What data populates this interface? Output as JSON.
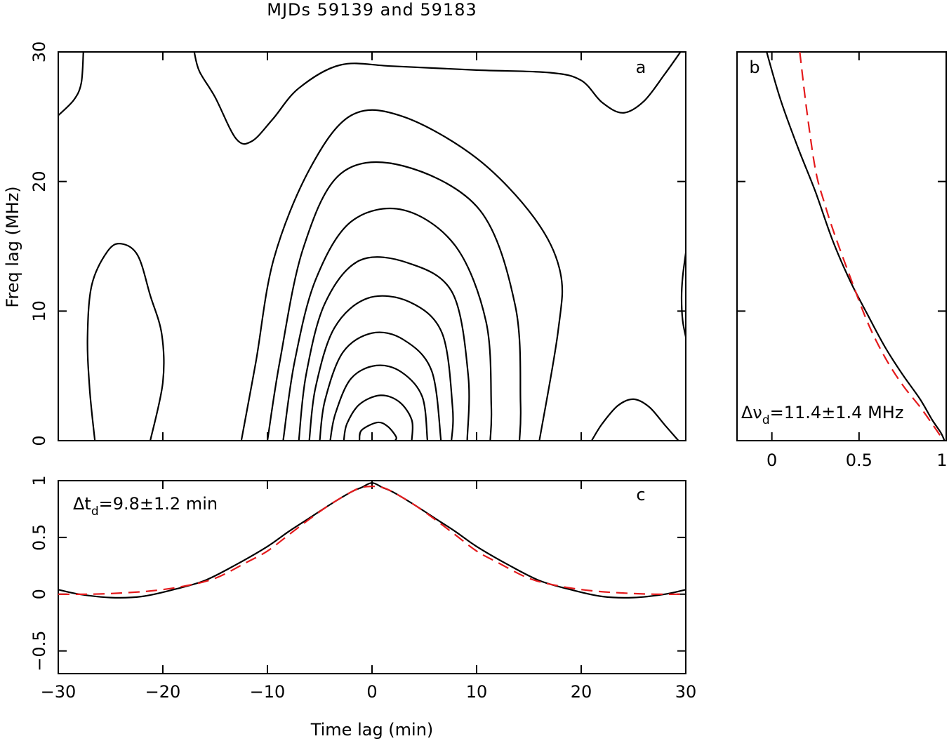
{
  "title": "MJDs 59139 and 59183",
  "chart_data": [
    {
      "id": "a",
      "type": "contour",
      "panel_label": "a",
      "xlabel": "",
      "ylabel": "Freq lag (MHz)",
      "xlim": [
        -30,
        30
      ],
      "ylim": [
        0,
        30
      ],
      "x_ticks": [
        -30,
        -20,
        -10,
        0,
        10,
        20,
        30
      ],
      "y_ticks": [
        0,
        10,
        20,
        30
      ],
      "y_tick_labels": [
        "0",
        "10",
        "20",
        "30"
      ],
      "contours": [
        [
          [
            -1.2,
            0
          ],
          [
            -1,
            0.8
          ],
          [
            0.5,
            1.4
          ],
          [
            1.5,
            1.1
          ],
          [
            2.3,
            0.3
          ],
          [
            2.2,
            0
          ]
        ],
        [
          [
            -2.7,
            0
          ],
          [
            -2.4,
            1.3
          ],
          [
            -1.2,
            2.8
          ],
          [
            0.8,
            3.5
          ],
          [
            2.6,
            3.0
          ],
          [
            3.8,
            1.6
          ],
          [
            3.8,
            0
          ]
        ],
        [
          [
            -4,
            0
          ],
          [
            -3.5,
            2.1
          ],
          [
            -2,
            4.8
          ],
          [
            0.4,
            5.8
          ],
          [
            2.8,
            5.3
          ],
          [
            4.8,
            3.4
          ],
          [
            5.3,
            0
          ]
        ],
        [
          [
            -5,
            0
          ],
          [
            -4.5,
            3.1
          ],
          [
            -2.8,
            6.8
          ],
          [
            0,
            8.3
          ],
          [
            3,
            7.8
          ],
          [
            5.7,
            5.4
          ],
          [
            6.6,
            0
          ]
        ],
        [
          [
            -6,
            0
          ],
          [
            -5.4,
            4.1
          ],
          [
            -3.6,
            8.7
          ],
          [
            -0.4,
            11.0
          ],
          [
            3.6,
            10.7
          ],
          [
            6.7,
            8.3
          ],
          [
            7.7,
            2.6
          ],
          [
            7.6,
            0
          ]
        ],
        [
          [
            -7,
            0
          ],
          [
            -6.3,
            5.1
          ],
          [
            -4.5,
            10.6
          ],
          [
            -1.2,
            13.9
          ],
          [
            3.5,
            13.7
          ],
          [
            7.7,
            11.4
          ],
          [
            9.2,
            5.0
          ],
          [
            9.1,
            0
          ]
        ],
        [
          [
            -8.5,
            0
          ],
          [
            -7.4,
            6.1
          ],
          [
            -5.4,
            12.4
          ],
          [
            -2,
            16.9
          ],
          [
            3,
            17.8
          ],
          [
            8,
            15.0
          ],
          [
            10.9,
            9.2
          ],
          [
            11.4,
            2.7
          ],
          [
            11.3,
            0
          ]
        ],
        [
          [
            -10,
            0
          ],
          [
            -8.8,
            6.2
          ],
          [
            -6.6,
            14.8
          ],
          [
            -3,
            20.6
          ],
          [
            3,
            21.2
          ],
          [
            10.3,
            17.8
          ],
          [
            13.7,
            10.4
          ],
          [
            14.2,
            2.9
          ],
          [
            14.1,
            0
          ]
        ],
        [
          [
            -12.5,
            0
          ],
          [
            -11.1,
            6.1
          ],
          [
            -9.4,
            14.0
          ],
          [
            -6,
            20.9
          ],
          [
            -2,
            25.1
          ],
          [
            3,
            25.0
          ],
          [
            10,
            21.8
          ],
          [
            15.5,
            17.2
          ],
          [
            18,
            13.0
          ],
          [
            17.8,
            8.5
          ],
          [
            16,
            0
          ]
        ],
        [
          [
            -30,
            25.1
          ],
          [
            -28.5,
            26.3
          ],
          [
            -27.8,
            27.6
          ],
          [
            -27.6,
            30
          ]
        ],
        [
          [
            -17,
            30
          ],
          [
            -16.5,
            28.5
          ],
          [
            -15,
            26.5
          ],
          [
            -13,
            23.3
          ],
          [
            -11.5,
            23.1
          ],
          [
            -9.5,
            24.8
          ],
          [
            -7,
            27.2
          ],
          [
            -3,
            29.0
          ],
          [
            2,
            28.9
          ],
          [
            10,
            28.6
          ],
          [
            17,
            28.4
          ],
          [
            20,
            27.8
          ],
          [
            22,
            26.1
          ],
          [
            24,
            25.3
          ],
          [
            26,
            26.2
          ],
          [
            28,
            28.3
          ],
          [
            29.5,
            30
          ]
        ]
      ],
      "closed_contours": [
        [
          [
            -26.5,
            0
          ],
          [
            -27,
            4.0
          ],
          [
            -27.2,
            8.0
          ],
          [
            -26.8,
            12.0
          ],
          [
            -25.3,
            14.6
          ],
          [
            -24,
            15.2
          ],
          [
            -22.4,
            14.3
          ],
          [
            -21.2,
            11.2
          ],
          [
            -20.1,
            8.2
          ],
          [
            -20,
            4.5
          ],
          [
            -21.2,
            0
          ]
        ],
        [
          [
            21,
            0
          ],
          [
            22,
            1.3
          ],
          [
            23.5,
            2.7
          ],
          [
            25,
            3.2
          ],
          [
            26.5,
            2.6
          ],
          [
            28,
            1.2
          ],
          [
            29.3,
            0
          ]
        ],
        [
          [
            30,
            14.5
          ],
          [
            29.7,
            12.6
          ],
          [
            29.6,
            11.0
          ],
          [
            29.7,
            9.3
          ],
          [
            30,
            8.0
          ]
        ]
      ]
    },
    {
      "id": "b",
      "type": "line",
      "panel_label": "b",
      "xlabel": "",
      "ylabel": "",
      "xlim": [
        -0.2,
        1.0
      ],
      "ylim": [
        0,
        30
      ],
      "x_ticks": [
        0,
        0.5,
        1
      ],
      "x_tick_labels": [
        "0",
        "0.5",
        "1"
      ],
      "annotation": "Δν",
      "annotation_sub": "d",
      "annotation_rest": "=11.4±1.4 MHz",
      "series": [
        {
          "style": "solid-black",
          "x": [
            -0.03,
            0.05,
            0.15,
            0.25,
            0.35,
            0.45,
            0.55,
            0.65,
            0.75,
            0.85,
            0.92,
            0.97,
            0.99
          ],
          "y": [
            30,
            26.3,
            22.6,
            19.2,
            15.4,
            12.3,
            9.7,
            7.2,
            5.1,
            3.2,
            1.6,
            0.6,
            0
          ]
        },
        {
          "style": "dashed-red",
          "x": [
            0.16,
            0.2,
            0.25,
            0.3,
            0.36,
            0.45,
            0.55,
            0.65,
            0.75,
            0.85,
            0.93,
            0.98
          ],
          "y": [
            30,
            25.5,
            20.9,
            18.4,
            15.9,
            12.6,
            9.1,
            6.4,
            4.3,
            2.6,
            1.1,
            0.1
          ]
        }
      ]
    },
    {
      "id": "c",
      "type": "line",
      "panel_label": "c",
      "xlabel": "Time lag (min)",
      "ylabel": "",
      "xlim": [
        -30,
        30
      ],
      "ylim": [
        -0.7,
        1.0
      ],
      "x_ticks": [
        -30,
        -20,
        -10,
        0,
        10,
        20,
        30
      ],
      "x_tick_labels": [
        "−30",
        "−20",
        "−10",
        "0",
        "10",
        "20",
        "30"
      ],
      "y_ticks": [
        -0.5,
        0,
        0.5,
        1
      ],
      "y_tick_labels": [
        "−0.5",
        "0",
        "0.5",
        "1"
      ],
      "annotation": "Δt",
      "annotation_sub": "d",
      "annotation_rest": "=9.8±1.2 min",
      "series": [
        {
          "style": "solid-black",
          "x": [
            -30,
            -28,
            -25,
            -22,
            -19,
            -16,
            -13,
            -10,
            -8,
            -6,
            -4,
            -2,
            -1,
            0,
            1,
            2,
            4,
            6,
            8,
            10,
            13,
            16,
            19,
            22,
            25,
            28,
            30
          ],
          "y": [
            0.04,
            0.0,
            -0.03,
            -0.02,
            0.04,
            0.12,
            0.26,
            0.42,
            0.55,
            0.67,
            0.79,
            0.9,
            0.94,
            0.98,
            0.94,
            0.9,
            0.79,
            0.67,
            0.55,
            0.42,
            0.26,
            0.12,
            0.04,
            -0.02,
            -0.03,
            0.0,
            0.04
          ]
        },
        {
          "style": "dashed-red",
          "x": [
            -30,
            -27,
            -24,
            -21,
            -18,
            -15,
            -12,
            -10,
            -8,
            -6,
            -4,
            -2,
            -1,
            0,
            1,
            2,
            4,
            6,
            8,
            10,
            12,
            15,
            18,
            21,
            24,
            27,
            30
          ],
          "y": [
            0.0,
            0.0,
            0.01,
            0.03,
            0.07,
            0.14,
            0.28,
            0.38,
            0.52,
            0.66,
            0.79,
            0.9,
            0.94,
            0.95,
            0.94,
            0.9,
            0.79,
            0.66,
            0.52,
            0.38,
            0.28,
            0.14,
            0.07,
            0.03,
            0.01,
            0.0,
            0.0
          ]
        }
      ]
    }
  ]
}
